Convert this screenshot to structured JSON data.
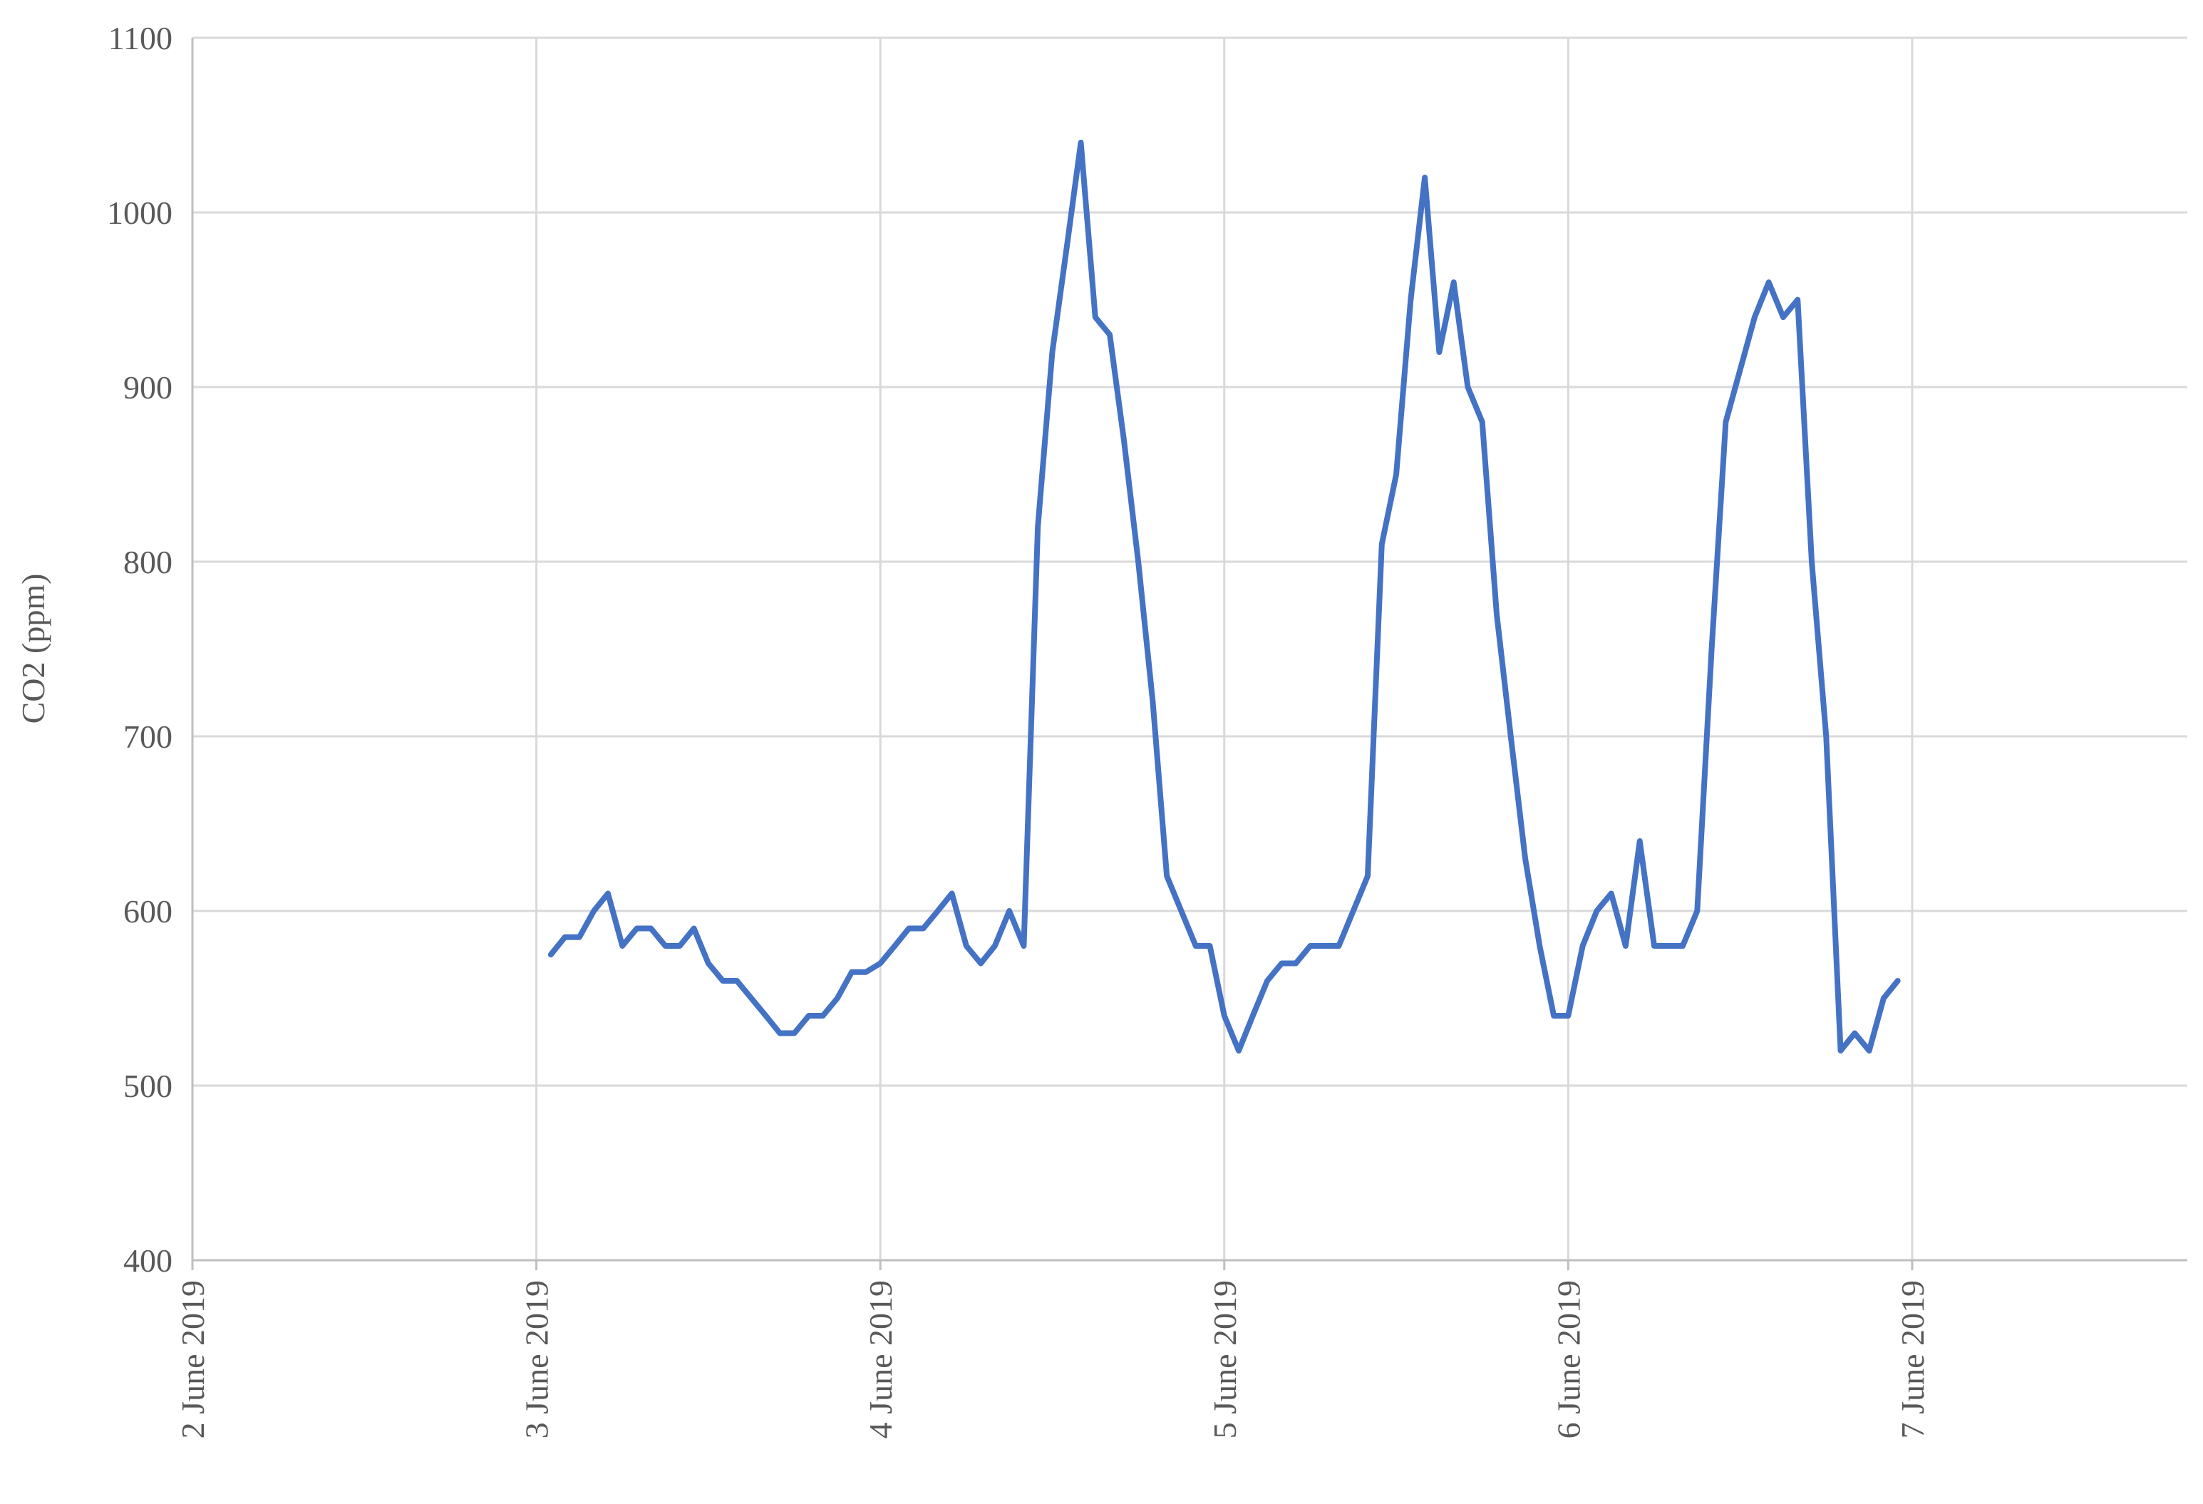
{
  "chart_data": {
    "type": "line",
    "y_label": "CO2 (ppm)",
    "x": [
      3.042,
      3.083,
      3.125,
      3.167,
      3.208,
      3.25,
      3.292,
      3.333,
      3.375,
      3.417,
      3.458,
      3.5,
      3.542,
      3.583,
      3.625,
      3.667,
      3.708,
      3.75,
      3.792,
      3.833,
      3.875,
      3.917,
      3.958,
      4,
      4.042,
      4.083,
      4.125,
      4.167,
      4.208,
      4.25,
      4.292,
      4.333,
      4.375,
      4.417,
      4.458,
      4.5,
      4.542,
      4.583,
      4.625,
      4.667,
      4.708,
      4.75,
      4.792,
      4.833,
      4.875,
      4.917,
      4.958,
      5,
      5.042,
      5.083,
      5.125,
      5.167,
      5.208,
      5.25,
      5.292,
      5.333,
      5.375,
      5.417,
      5.458,
      5.5,
      5.542,
      5.583,
      5.625,
      5.667,
      5.708,
      5.75,
      5.792,
      5.833,
      5.875,
      5.917,
      5.958,
      6,
      6.042,
      6.083,
      6.125,
      6.167,
      6.208,
      6.25,
      6.292,
      6.333,
      6.375,
      6.417,
      6.458,
      6.5,
      6.542,
      6.583,
      6.625,
      6.667,
      6.708,
      6.75,
      6.792,
      6.833,
      6.875,
      6.917,
      6.958
    ],
    "series": [
      {
        "color": "#4472c4",
        "values": [
          575,
          585,
          585,
          600,
          610,
          580,
          590,
          590,
          580,
          580,
          590,
          570,
          560,
          560,
          550,
          540,
          530,
          530,
          540,
          540,
          550,
          565,
          565,
          570,
          580,
          590,
          590,
          600,
          610,
          580,
          570,
          580,
          600,
          580,
          820,
          920,
          980,
          1040,
          940,
          930,
          870,
          800,
          720,
          620,
          600,
          580,
          580,
          540,
          520,
          540,
          560,
          570,
          570,
          580,
          580,
          580,
          600,
          620,
          810,
          850,
          950,
          1020,
          920,
          960,
          900,
          880,
          770,
          700,
          630,
          580,
          540,
          540,
          580,
          600,
          610,
          580,
          640,
          580,
          580,
          580,
          600,
          750,
          880,
          910,
          940,
          960,
          940,
          950,
          800,
          700,
          520,
          530,
          520,
          550,
          560
        ]
      }
    ],
    "xlim": [
      2,
      7.8
    ],
    "xticks": [
      {
        "value": 2,
        "label": "2 June 2019"
      },
      {
        "value": 3,
        "label": "3 June 2019"
      },
      {
        "value": 4,
        "label": "4 June 2019"
      },
      {
        "value": 5,
        "label": "5 June 2019"
      },
      {
        "value": 6,
        "label": "6 June 2019"
      },
      {
        "value": 7,
        "label": "7 June 2019"
      }
    ],
    "ylim": [
      400,
      1100
    ],
    "yticks": [
      400,
      500,
      600,
      700,
      800,
      900,
      1000,
      1100
    ],
    "grid": true
  }
}
